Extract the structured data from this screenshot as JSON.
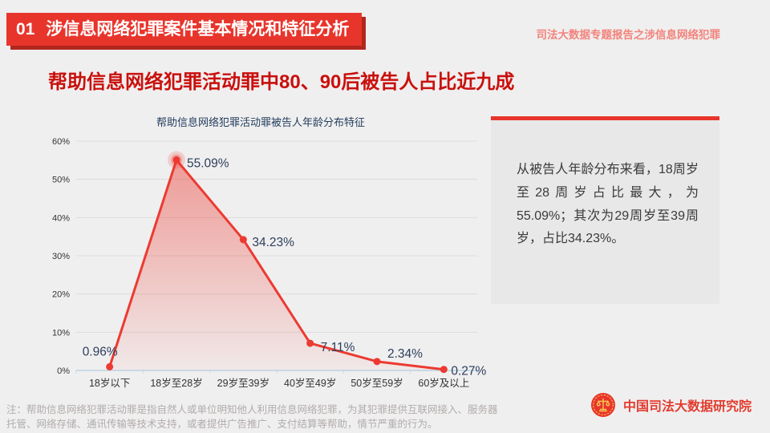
{
  "header": {
    "section_number": "01",
    "section_title": "涉信息网络犯罪案件基本情况和特征分析",
    "report_label": "司法大数据专题报告之涉信息网络犯罪"
  },
  "main": {
    "title": "帮助信息网络犯罪活动罪中80、90后被告人占比近九成"
  },
  "chart_data": {
    "type": "area",
    "title": "帮助信息网络犯罪活动罪被告人年龄分布特征",
    "categories": [
      "18岁以下",
      "18岁至28岁",
      "29岁至39岁",
      "40岁至49岁",
      "50岁至59岁",
      "60岁及以上"
    ],
    "values": [
      0.96,
      55.09,
      34.23,
      7.11,
      2.34,
      0.27
    ],
    "labels": [
      "0.96%",
      "55.09%",
      "34.23%",
      "7.11%",
      "2.34%",
      "0.27%"
    ],
    "xlabel": "",
    "ylabel": "",
    "ylim": [
      0,
      60
    ],
    "ytick_step": 10,
    "ytick_suffix": "%",
    "grid": true,
    "legend": "none",
    "line_color": "#EC3A31",
    "label_color": "#2C3E5D",
    "axis_text_color": "#333333",
    "gridline_color": "#DCDCDC",
    "baseline_color": "#C9DAE7"
  },
  "info_box": {
    "text": "从被告人年龄分布来看，18周岁至28周岁占比最大，为55.09%；其次为29周岁至39周岁，占比34.23%。"
  },
  "footnote": {
    "text": "注：帮助信息网络犯罪活动罪是指自然人或单位明知他人利用信息网络犯罪，为其犯罪提供互联网接入、服务器托管、网络存储、通讯传输等技术支持，或者提供广告推广、支付结算等帮助，情节严重的行为。"
  },
  "footer": {
    "org_name": "中国司法大数据研究院"
  },
  "colors": {
    "accent_red": "#E8352C",
    "badge_shadow_red": "#B1271C",
    "title_red": "#C9100D",
    "header_pink": "#F2837C",
    "footer_red": "#E23C2F",
    "navy": "#1F3B5C",
    "background": "#F0EFEF",
    "box_background": "#E9E8E8",
    "note_gray": "#B0ACAB",
    "emblem_gold": "#F9C653"
  }
}
